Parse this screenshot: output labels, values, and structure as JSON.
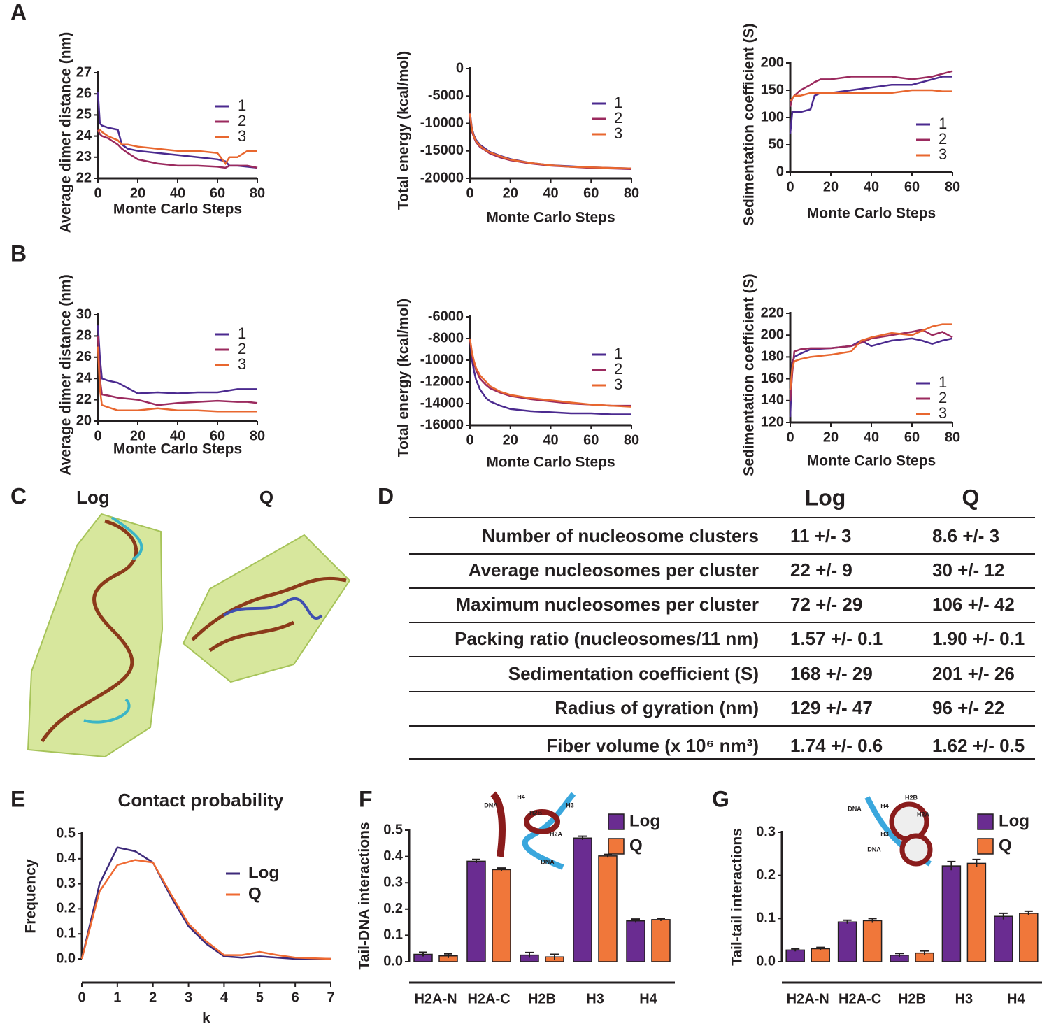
{
  "panel_labels": [
    "A",
    "B",
    "C",
    "D",
    "E",
    "F",
    "G"
  ],
  "chart_data": [
    {
      "type": "line",
      "xlabel": "Monte Carlo Steps",
      "ylabel": "Average dimer distance (nm)",
      "xlim": [
        0,
        80
      ],
      "xticks": [
        0,
        20,
        40,
        60,
        80
      ],
      "ylim": [
        22,
        27
      ],
      "yticks": [
        22,
        23,
        24,
        25,
        26,
        27
      ],
      "x": [
        0,
        1,
        2,
        5,
        10,
        12,
        15,
        20,
        30,
        40,
        50,
        60,
        64,
        66,
        70,
        75,
        80
      ],
      "series": [
        {
          "name": "1",
          "color": "#4b2a8f",
          "values": [
            26.1,
            24.6,
            24.5,
            24.4,
            24.3,
            23.6,
            23.4,
            23.3,
            23.2,
            23.1,
            23.0,
            22.9,
            22.8,
            22.6,
            22.6,
            22.55,
            22.5
          ]
        },
        {
          "name": "2",
          "color": "#9b2a5e",
          "values": [
            24.3,
            24.1,
            24.0,
            23.9,
            23.6,
            23.4,
            23.2,
            22.9,
            22.7,
            22.6,
            22.6,
            22.55,
            22.5,
            22.6,
            22.6,
            22.6,
            22.5
          ]
        },
        {
          "name": "3",
          "color": "#e8672f",
          "values": [
            24.2,
            24.3,
            24.2,
            24.0,
            23.8,
            23.6,
            23.6,
            23.5,
            23.4,
            23.3,
            23.3,
            23.2,
            22.7,
            23.0,
            23.0,
            23.3,
            23.3
          ]
        }
      ]
    },
    {
      "type": "line",
      "xlabel": "Monte Carlo Steps",
      "ylabel": "Total energy (kcal/mol)",
      "xlim": [
        0,
        80
      ],
      "xticks": [
        0,
        20,
        40,
        60,
        80
      ],
      "ylim": [
        -20000,
        0
      ],
      "yticks": [
        -20000,
        -15000,
        -10000,
        -5000,
        0
      ],
      "x": [
        0,
        1,
        2,
        3,
        5,
        8,
        10,
        15,
        20,
        30,
        40,
        50,
        60,
        70,
        80
      ],
      "series": [
        {
          "name": "1",
          "color": "#4b2a8f",
          "values": [
            -8000,
            -11000,
            -12200,
            -13000,
            -13900,
            -14700,
            -15200,
            -15900,
            -16500,
            -17200,
            -17600,
            -17800,
            -18000,
            -18100,
            -18200
          ]
        },
        {
          "name": "2",
          "color": "#9b2a5e",
          "values": [
            -8500,
            -11500,
            -12600,
            -13400,
            -14300,
            -15000,
            -15500,
            -16200,
            -16700,
            -17300,
            -17700,
            -17900,
            -18100,
            -18200,
            -18300
          ]
        },
        {
          "name": "3",
          "color": "#e8672f",
          "values": [
            -8200,
            -11200,
            -12400,
            -13200,
            -14100,
            -14900,
            -15300,
            -16000,
            -16600,
            -17200,
            -17600,
            -17900,
            -18000,
            -18100,
            -18200
          ]
        }
      ]
    },
    {
      "type": "line",
      "xlabel": "Monte Carlo Steps",
      "ylabel": "Sedimentation coefficient (S)",
      "xlim": [
        0,
        80
      ],
      "xticks": [
        0,
        20,
        40,
        60,
        80
      ],
      "ylim": [
        0,
        200
      ],
      "yticks": [
        0,
        50,
        100,
        150,
        200
      ],
      "x": [
        0,
        1,
        2,
        5,
        10,
        12,
        15,
        20,
        30,
        40,
        50,
        60,
        70,
        75,
        80
      ],
      "series": [
        {
          "name": "1",
          "color": "#4b2a8f",
          "values": [
            70,
            110,
            110,
            110,
            115,
            140,
            145,
            145,
            150,
            155,
            160,
            160,
            170,
            175,
            175
          ]
        },
        {
          "name": "2",
          "color": "#9b2a5e",
          "values": [
            120,
            135,
            140,
            150,
            160,
            165,
            170,
            170,
            175,
            175,
            175,
            170,
            175,
            180,
            185
          ]
        },
        {
          "name": "3",
          "color": "#e8672f",
          "values": [
            130,
            135,
            140,
            140,
            145,
            145,
            145,
            145,
            145,
            145,
            145,
            150,
            150,
            148,
            148
          ]
        }
      ]
    },
    {
      "type": "line",
      "xlabel": "Monte Carlo Steps",
      "ylabel": "Average dimer distance (nm)",
      "xlim": [
        0,
        80
      ],
      "xticks": [
        0,
        20,
        40,
        60,
        80
      ],
      "ylim": [
        20,
        30
      ],
      "yticks": [
        20,
        22,
        24,
        26,
        28,
        30
      ],
      "x": [
        0,
        1,
        2,
        5,
        10,
        20,
        30,
        40,
        50,
        60,
        70,
        75,
        80
      ],
      "series": [
        {
          "name": "1",
          "color": "#4b2a8f",
          "values": [
            29,
            26,
            24,
            23.8,
            23.6,
            22.6,
            22.7,
            22.6,
            22.7,
            22.7,
            23,
            23,
            23
          ]
        },
        {
          "name": "2",
          "color": "#9b2a5e",
          "values": [
            28,
            24,
            22.5,
            22.4,
            22.2,
            22.0,
            21.5,
            21.7,
            21.8,
            21.9,
            21.8,
            21.8,
            21.7
          ]
        },
        {
          "name": "3",
          "color": "#e8672f",
          "values": [
            27,
            23,
            21.5,
            21.3,
            21.0,
            21.0,
            21.2,
            21.0,
            21.0,
            20.9,
            20.9,
            20.9,
            20.9
          ]
        }
      ]
    },
    {
      "type": "line",
      "xlabel": "Monte Carlo Steps",
      "ylabel": "Total energy (kcal/mol)",
      "xlim": [
        0,
        80
      ],
      "xticks": [
        0,
        20,
        40,
        60,
        80
      ],
      "ylim": [
        -16000,
        -6000
      ],
      "yticks": [
        -16000,
        -14000,
        -12000,
        -10000,
        -8000,
        -6000
      ],
      "x": [
        0,
        1,
        2,
        3,
        5,
        8,
        10,
        15,
        20,
        30,
        40,
        50,
        60,
        70,
        80
      ],
      "series": [
        {
          "name": "1",
          "color": "#4b2a8f",
          "values": [
            -8000,
            -10000,
            -11000,
            -11800,
            -12700,
            -13500,
            -13800,
            -14200,
            -14500,
            -14700,
            -14800,
            -14900,
            -14900,
            -15000,
            -15000
          ]
        },
        {
          "name": "2",
          "color": "#9b2a5e",
          "values": [
            -8000,
            -9500,
            -10300,
            -10900,
            -11700,
            -12300,
            -12600,
            -13000,
            -13300,
            -13600,
            -13800,
            -14000,
            -14100,
            -14200,
            -14200
          ]
        },
        {
          "name": "3",
          "color": "#e8672f",
          "values": [
            -8000,
            -9300,
            -10100,
            -10700,
            -11400,
            -12000,
            -12400,
            -12900,
            -13200,
            -13500,
            -13700,
            -13900,
            -14100,
            -14200,
            -14300
          ]
        }
      ]
    },
    {
      "type": "line",
      "xlabel": "Monte Carlo Steps",
      "ylabel": "Sedimentation coefficient (S)",
      "xlim": [
        0,
        80
      ],
      "xticks": [
        0,
        20,
        40,
        60,
        80
      ],
      "ylim": [
        120,
        220
      ],
      "yticks": [
        120,
        140,
        160,
        180,
        200,
        220
      ],
      "x": [
        0,
        1,
        2,
        5,
        10,
        20,
        30,
        35,
        40,
        50,
        60,
        65,
        70,
        75,
        80
      ],
      "series": [
        {
          "name": "1",
          "color": "#4b2a8f",
          "values": [
            125,
            175,
            180,
            183,
            187,
            188,
            190,
            195,
            190,
            195,
            197,
            195,
            192,
            195,
            197
          ]
        },
        {
          "name": "2",
          "color": "#9b2a5e",
          "values": [
            140,
            165,
            185,
            187,
            188,
            188,
            190,
            193,
            197,
            200,
            203,
            205,
            200,
            203,
            198
          ]
        },
        {
          "name": "3",
          "color": "#e8672f",
          "values": [
            150,
            170,
            176,
            178,
            180,
            182,
            185,
            195,
            198,
            202,
            200,
            204,
            208,
            210,
            210
          ]
        }
      ]
    },
    {
      "type": "line",
      "title": "Contact probability",
      "xlabel": "k",
      "ylabel": "Frequency",
      "xlim": [
        0,
        7
      ],
      "xticks": [
        0,
        1,
        2,
        3,
        4,
        5,
        6,
        7
      ],
      "ylim": [
        0,
        0.5
      ],
      "yticks": [
        {
          "value": 0,
          "label": "0.0"
        },
        0.1,
        0.2,
        0.3,
        0.4,
        0.5
      ],
      "x": [
        0,
        0.5,
        1,
        1.5,
        2,
        2.5,
        3,
        3.5,
        4,
        4.5,
        5,
        5.5,
        6,
        7
      ],
      "series": [
        {
          "name": "Log",
          "color": "#3d2a7a",
          "values": [
            0,
            0.3,
            0.445,
            0.43,
            0.385,
            0.25,
            0.13,
            0.06,
            0.01,
            0.005,
            0.01,
            0.005,
            0,
            0
          ]
        },
        {
          "name": "Q",
          "color": "#ef6a32",
          "values": [
            0,
            0.27,
            0.375,
            0.395,
            0.385,
            0.26,
            0.14,
            0.07,
            0.015,
            0.015,
            0.028,
            0.015,
            0.005,
            0
          ]
        }
      ]
    },
    {
      "type": "bar",
      "ylabel": "Tail-DNA interactions",
      "ylim": [
        0,
        0.5
      ],
      "yticks": [
        {
          "value": 0,
          "label": "0.0"
        },
        0.1,
        0.2,
        0.3,
        0.4,
        0.5
      ],
      "categories": [
        "H2A-N",
        "H2A-C",
        "H2B",
        "H3",
        "H4"
      ],
      "series": [
        {
          "name": "Log",
          "color": "#6a2c91",
          "values": [
            0.028,
            0.382,
            0.025,
            0.47,
            0.155
          ],
          "errors": [
            0.008,
            0.007,
            0.01,
            0.007,
            0.007
          ]
        },
        {
          "name": "Q",
          "color": "#f0773a",
          "values": [
            0.022,
            0.35,
            0.018,
            0.402,
            0.16
          ],
          "errors": [
            0.008,
            0.006,
            0.01,
            0.006,
            0.005
          ]
        }
      ],
      "inset_labels": [
        "DNA",
        "H4",
        "H3",
        "H2B",
        "H2A",
        "DNA"
      ]
    },
    {
      "type": "bar",
      "ylabel": "Tail-tail interactions",
      "ylim": [
        0,
        0.3
      ],
      "yticks": [
        {
          "value": 0,
          "label": "0.0"
        },
        0.1,
        0.2,
        0.3
      ],
      "categories": [
        "H2A-N",
        "H2A-C",
        "H2B",
        "H3",
        "H4"
      ],
      "series": [
        {
          "name": "Log",
          "color": "#6a2c91",
          "values": [
            0.027,
            0.092,
            0.015,
            0.222,
            0.105
          ],
          "errors": [
            0.003,
            0.004,
            0.004,
            0.01,
            0.007
          ]
        },
        {
          "name": "Q",
          "color": "#f0773a",
          "values": [
            0.03,
            0.095,
            0.02,
            0.228,
            0.112
          ],
          "errors": [
            0.003,
            0.005,
            0.005,
            0.009,
            0.005
          ]
        }
      ],
      "inset_labels": [
        "DNA",
        "H4",
        "H2B",
        "H2A",
        "H3",
        "DNA"
      ]
    }
  ],
  "structure_labels": [
    "Log",
    "Q"
  ],
  "table": {
    "header": [
      "Log",
      "Q"
    ],
    "rows": [
      [
        "Number of nucleosome clusters",
        "11 +/- 3",
        "8.6 +/- 3"
      ],
      [
        "Average nucleosomes per cluster",
        "22 +/- 9",
        "30 +/- 12"
      ],
      [
        "Maximum nucleosomes per cluster",
        "72 +/- 29",
        "106 +/- 42"
      ],
      [
        "Packing ratio (nucleosomes/11 nm)",
        "1.57 +/- 0.1",
        "1.90 +/- 0.1"
      ],
      [
        "Sedimentation coefficient (S)",
        "168 +/- 29",
        "201 +/- 26"
      ],
      [
        "Radius of gyration (nm)",
        "129 +/- 47",
        "96 +/- 22"
      ],
      [
        "Fiber volume (x 10⁶ nm³)",
        "1.74 +/- 0.6",
        "1.62 +/- 0.5"
      ]
    ]
  }
}
